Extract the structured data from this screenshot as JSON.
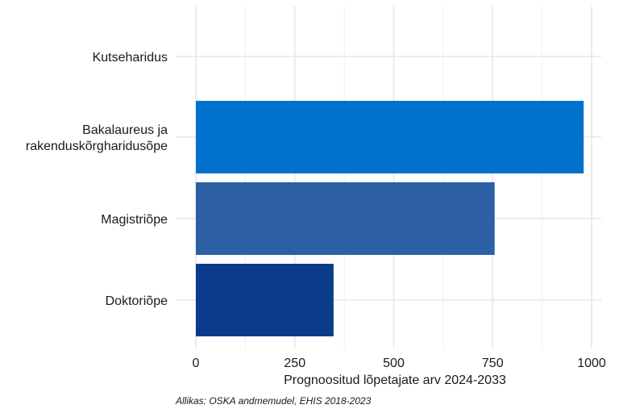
{
  "chart_data": {
    "type": "bar",
    "orientation": "horizontal",
    "categories": [
      "Kutseharidus",
      "Bakalaureus ja\nrakenduskõrgharidusõpe",
      "Magistriõpe",
      "Doktoriõpe"
    ],
    "values": [
      0,
      980,
      755,
      348
    ],
    "colors": [
      "#0072ce",
      "#0072ce",
      "#2c5fa3",
      "#0b3c8c"
    ],
    "xlabel": "Prognoositud lõpetajate arv 2024-2033",
    "ylabel": "",
    "xlim": [
      0,
      1000
    ],
    "xticks": [
      "0",
      "250",
      "500",
      "750",
      "1000"
    ],
    "grid": true,
    "caption": "Allikas: OSKA andmemudel, EHIS 2018-2023"
  }
}
